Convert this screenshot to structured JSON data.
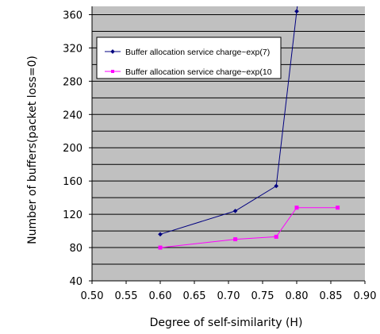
{
  "chart_data": {
    "type": "line",
    "title": "",
    "xlabel": "Degree of self-similarity (H)",
    "ylabel": "Number of buffers(packet loss=0)",
    "xlim": [
      0.5,
      0.9
    ],
    "ylim": [
      40,
      370
    ],
    "x_ticks": [
      "0.50",
      "0.55",
      "0.60",
      "0.65",
      "0.70",
      "0.75",
      "0.80",
      "0.85",
      "0.90"
    ],
    "y_ticks": [
      "40",
      "80",
      "120",
      "160",
      "200",
      "240",
      "280",
      "320",
      "360"
    ],
    "grid": true,
    "legend_position": "top-right",
    "background": "#c0c0c0",
    "series": [
      {
        "name": "Buffer allocation service charge~exp(7)",
        "color": "#000080",
        "marker": "diamond",
        "x": [
          0.6,
          0.71,
          0.77,
          0.8
        ],
        "y": [
          96,
          124,
          154,
          364
        ]
      },
      {
        "name": "Buffer allocation service charge~exp(10",
        "color": "#ff00ff",
        "marker": "square",
        "x": [
          0.6,
          0.71,
          0.77,
          0.8,
          0.86
        ],
        "y": [
          80,
          90,
          93,
          128,
          128
        ]
      }
    ]
  }
}
